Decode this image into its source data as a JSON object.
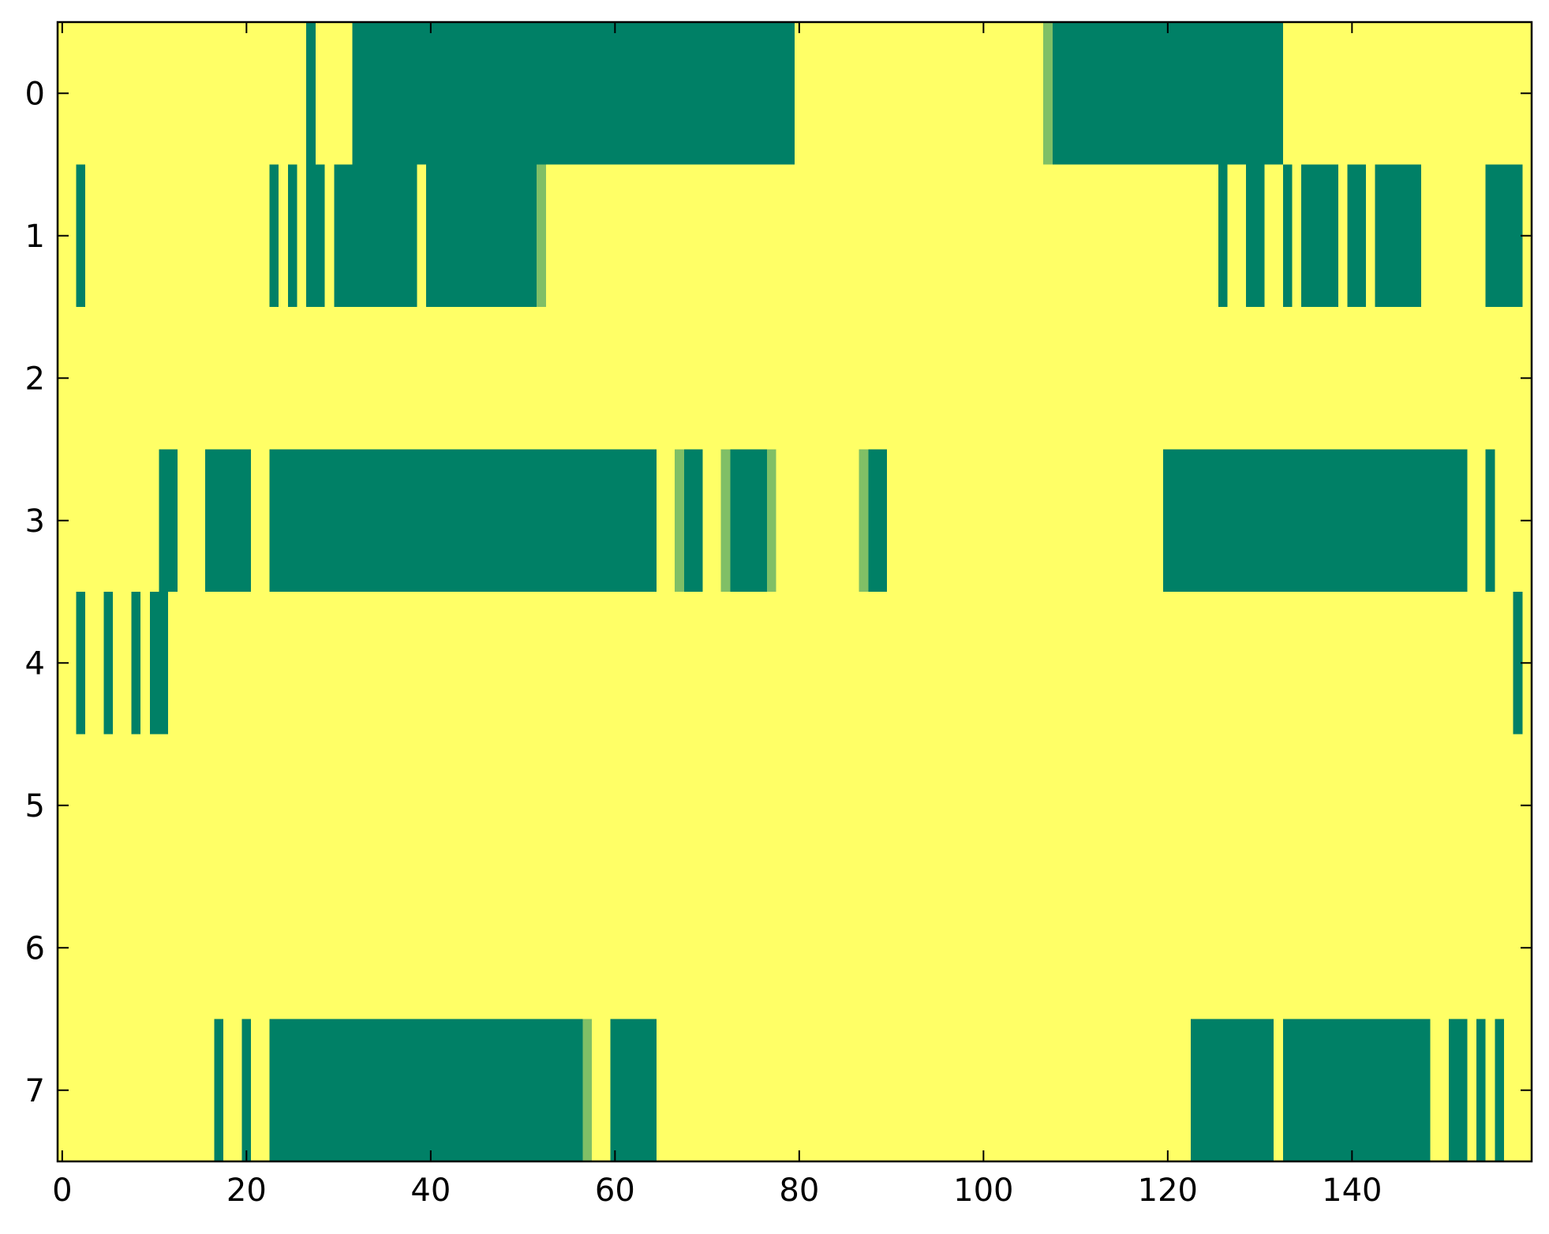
{
  "chart_data": {
    "type": "heatmap",
    "x_ticks": [
      0,
      20,
      40,
      60,
      80,
      100,
      120,
      140
    ],
    "y_ticks": [
      0,
      1,
      2,
      3,
      4,
      5,
      6,
      7
    ],
    "x_range": [
      -0.5,
      159.5
    ],
    "y_range": [
      -0.5,
      7.5
    ],
    "grid": false,
    "colors": {
      "background": "#ffff66",
      "dark": "#008066",
      "light": "#80bf66",
      "frame": "#000000"
    },
    "rows": [
      {
        "row": 0,
        "cells": [
          {
            "start": 27,
            "end": 27,
            "level": "dark"
          },
          {
            "start": 32,
            "end": 79,
            "level": "dark"
          },
          {
            "start": 107,
            "end": 107,
            "level": "light"
          },
          {
            "start": 108,
            "end": 132,
            "level": "dark"
          }
        ]
      },
      {
        "row": 1,
        "cells": [
          {
            "start": 2,
            "end": 2,
            "level": "dark"
          },
          {
            "start": 23,
            "end": 23,
            "level": "dark"
          },
          {
            "start": 25,
            "end": 25,
            "level": "dark"
          },
          {
            "start": 27,
            "end": 28,
            "level": "dark"
          },
          {
            "start": 30,
            "end": 38,
            "level": "dark"
          },
          {
            "start": 40,
            "end": 51,
            "level": "dark"
          },
          {
            "start": 52,
            "end": 52,
            "level": "light"
          },
          {
            "start": 126,
            "end": 126,
            "level": "dark"
          },
          {
            "start": 129,
            "end": 130,
            "level": "dark"
          },
          {
            "start": 133,
            "end": 133,
            "level": "dark"
          },
          {
            "start": 135,
            "end": 138,
            "level": "dark"
          },
          {
            "start": 140,
            "end": 141,
            "level": "dark"
          },
          {
            "start": 143,
            "end": 147,
            "level": "dark"
          },
          {
            "start": 155,
            "end": 158,
            "level": "dark"
          }
        ]
      },
      {
        "row": 2,
        "cells": []
      },
      {
        "row": 3,
        "cells": [
          {
            "start": 11,
            "end": 12,
            "level": "dark"
          },
          {
            "start": 16,
            "end": 20,
            "level": "dark"
          },
          {
            "start": 23,
            "end": 64,
            "level": "dark"
          },
          {
            "start": 67,
            "end": 67,
            "level": "light"
          },
          {
            "start": 68,
            "end": 69,
            "level": "dark"
          },
          {
            "start": 72,
            "end": 72,
            "level": "light"
          },
          {
            "start": 73,
            "end": 76,
            "level": "dark"
          },
          {
            "start": 77,
            "end": 77,
            "level": "light"
          },
          {
            "start": 87,
            "end": 87,
            "level": "light"
          },
          {
            "start": 88,
            "end": 89,
            "level": "dark"
          },
          {
            "start": 120,
            "end": 152,
            "level": "dark"
          },
          {
            "start": 155,
            "end": 155,
            "level": "dark"
          }
        ]
      },
      {
        "row": 4,
        "cells": [
          {
            "start": 2,
            "end": 2,
            "level": "dark"
          },
          {
            "start": 5,
            "end": 5,
            "level": "dark"
          },
          {
            "start": 8,
            "end": 8,
            "level": "dark"
          },
          {
            "start": 10,
            "end": 11,
            "level": "dark"
          },
          {
            "start": 158,
            "end": 158,
            "level": "dark"
          }
        ]
      },
      {
        "row": 5,
        "cells": []
      },
      {
        "row": 6,
        "cells": []
      },
      {
        "row": 7,
        "cells": [
          {
            "start": 17,
            "end": 17,
            "level": "dark"
          },
          {
            "start": 20,
            "end": 20,
            "level": "dark"
          },
          {
            "start": 23,
            "end": 56,
            "level": "dark"
          },
          {
            "start": 57,
            "end": 57,
            "level": "light"
          },
          {
            "start": 60,
            "end": 64,
            "level": "dark"
          },
          {
            "start": 123,
            "end": 131,
            "level": "dark"
          },
          {
            "start": 133,
            "end": 148,
            "level": "dark"
          },
          {
            "start": 151,
            "end": 152,
            "level": "dark"
          },
          {
            "start": 154,
            "end": 154,
            "level": "dark"
          },
          {
            "start": 156,
            "end": 156,
            "level": "dark"
          }
        ]
      }
    ]
  }
}
